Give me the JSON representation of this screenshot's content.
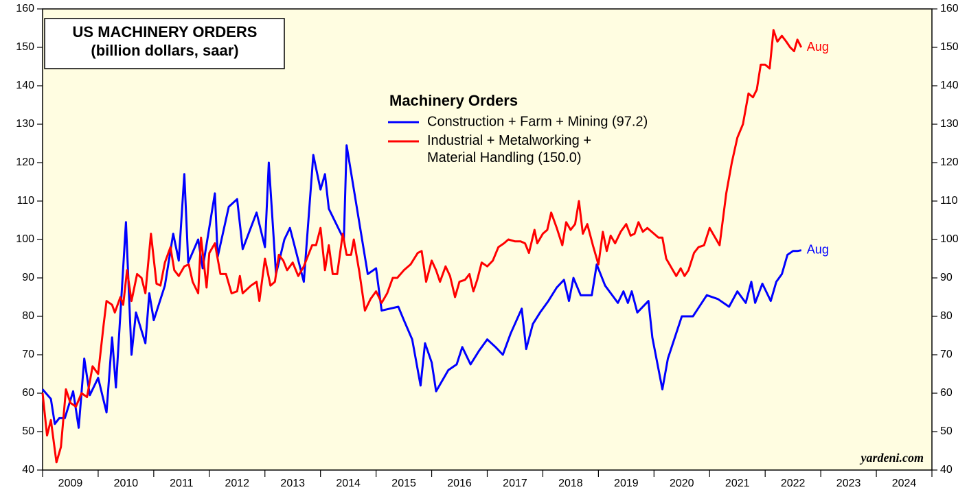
{
  "chart_data": {
    "type": "line",
    "title": "US MACHINERY ORDERS",
    "subtitle": "(billion dollars, saar)",
    "legend_title": "Machinery Orders",
    "source": "yardeni.com",
    "xlim": [
      2009,
      2025
    ],
    "xticks": [
      2009,
      2010,
      2011,
      2012,
      2013,
      2014,
      2015,
      2016,
      2017,
      2018,
      2019,
      2020,
      2021,
      2022,
      2023,
      2024,
      2025
    ],
    "x_labels": [
      "2009",
      "2010",
      "2011",
      "2012",
      "2013",
      "2014",
      "2015",
      "2016",
      "2017",
      "2018",
      "2019",
      "2020",
      "2021",
      "2022",
      "2023",
      "2024"
    ],
    "ylim": [
      40,
      160
    ],
    "yticks": [
      40,
      50,
      60,
      70,
      80,
      90,
      100,
      110,
      120,
      130,
      140,
      150,
      160
    ],
    "series": [
      {
        "name": "Construction + Farm + Mining (97.2)",
        "color": "#0000ff",
        "annotation": "Aug",
        "x": [
          2009.0,
          2009.15,
          2009.22,
          2009.3,
          2009.4,
          2009.55,
          2009.65,
          2009.75,
          2009.85,
          2010.0,
          2010.15,
          2010.25,
          2010.32,
          2010.5,
          2010.6,
          2010.68,
          2010.85,
          2010.92,
          2011.0,
          2011.2,
          2011.35,
          2011.45,
          2011.55,
          2011.62,
          2011.8,
          2011.88,
          2012.1,
          2012.15,
          2012.35,
          2012.5,
          2012.6,
          2012.85,
          2013.0,
          2013.07,
          2013.2,
          2013.35,
          2013.45,
          2013.7,
          2013.87,
          2014.0,
          2014.08,
          2014.15,
          2014.42,
          2014.47,
          2014.85,
          2015.0,
          2015.1,
          2015.4,
          2015.5,
          2015.65,
          2015.8,
          2015.88,
          2016.0,
          2016.08,
          2016.3,
          2016.45,
          2016.55,
          2016.7,
          2016.85,
          2017.0,
          2017.15,
          2017.28,
          2017.42,
          2017.62,
          2017.7,
          2017.82,
          2017.95,
          2018.1,
          2018.25,
          2018.38,
          2018.47,
          2018.55,
          2018.68,
          2018.88,
          2018.97,
          2019.12,
          2019.35,
          2019.45,
          2019.53,
          2019.6,
          2019.7,
          2019.9,
          2019.97,
          2020.15,
          2020.25,
          2020.5,
          2020.7,
          2020.95,
          2021.15,
          2021.35,
          2021.5,
          2021.65,
          2021.75,
          2021.82,
          2021.95,
          2022.1,
          2022.2,
          2022.3,
          2022.4,
          2022.5,
          2022.58,
          2022.65
        ],
        "values": [
          61,
          58.5,
          52,
          53.5,
          53.5,
          60.5,
          51,
          69,
          59.5,
          64,
          55,
          74.5,
          61.5,
          104.5,
          70,
          81,
          73,
          86,
          79,
          88,
          101.5,
          94.5,
          117,
          94,
          100,
          92.5,
          112,
          95.5,
          108.5,
          110.5,
          97.5,
          107,
          98,
          120,
          91,
          100,
          103,
          89,
          122,
          113,
          117,
          108,
          100,
          124.5,
          91,
          92.5,
          81.5,
          82.5,
          79,
          74,
          62,
          73,
          68,
          60.5,
          66,
          67.5,
          72,
          67.5,
          71,
          74,
          72,
          70,
          75.5,
          82,
          71.5,
          78,
          81,
          84,
          87.5,
          89.5,
          84,
          90,
          85.5,
          85.5,
          93.5,
          88,
          83.5,
          86.5,
          83.5,
          86.5,
          81,
          84,
          74.5,
          61,
          69,
          80,
          80,
          85.5,
          84.5,
          82.5,
          86.5,
          83.5,
          89,
          83.5,
          88.5,
          84,
          89,
          91,
          96,
          97,
          97,
          97.2
        ]
      },
      {
        "name": "Industrial + Metalworking +\nMaterial Handling (150.0)",
        "color": "#ff0000",
        "annotation": "Aug",
        "x": [
          2009.0,
          2009.08,
          2009.15,
          2009.25,
          2009.33,
          2009.42,
          2009.5,
          2009.6,
          2009.7,
          2009.8,
          2009.9,
          2010.0,
          2010.1,
          2010.15,
          2010.25,
          2010.3,
          2010.4,
          2010.45,
          2010.52,
          2010.6,
          2010.7,
          2010.78,
          2010.85,
          2010.95,
          2011.05,
          2011.12,
          2011.2,
          2011.3,
          2011.37,
          2011.45,
          2011.55,
          2011.63,
          2011.7,
          2011.8,
          2011.85,
          2011.95,
          2012.0,
          2012.1,
          2012.2,
          2012.3,
          2012.4,
          2012.5,
          2012.55,
          2012.6,
          2012.75,
          2012.85,
          2012.9,
          2013.0,
          2013.1,
          2013.18,
          2013.25,
          2013.33,
          2013.4,
          2013.5,
          2013.6,
          2013.7,
          2013.85,
          2013.92,
          2014.0,
          2014.08,
          2014.15,
          2014.22,
          2014.3,
          2014.4,
          2014.47,
          2014.55,
          2014.6,
          2014.7,
          2014.8,
          2014.9,
          2015.0,
          2015.1,
          2015.2,
          2015.3,
          2015.38,
          2015.5,
          2015.62,
          2015.75,
          2015.82,
          2015.9,
          2016.0,
          2016.08,
          2016.15,
          2016.25,
          2016.33,
          2016.42,
          2016.5,
          2016.6,
          2016.68,
          2016.75,
          2016.82,
          2016.9,
          2017.0,
          2017.1,
          2017.2,
          2017.3,
          2017.38,
          2017.5,
          2017.6,
          2017.68,
          2017.75,
          2017.85,
          2017.9,
          2018.0,
          2018.08,
          2018.15,
          2018.25,
          2018.35,
          2018.42,
          2018.5,
          2018.58,
          2018.65,
          2018.72,
          2018.8,
          2018.9,
          2019.0,
          2019.08,
          2019.15,
          2019.22,
          2019.3,
          2019.4,
          2019.5,
          2019.58,
          2019.65,
          2019.72,
          2019.8,
          2019.88,
          2020.0,
          2020.08,
          2020.15,
          2020.22,
          2020.3,
          2020.4,
          2020.48,
          2020.55,
          2020.62,
          2020.72,
          2020.8,
          2020.9,
          2021.0,
          2021.08,
          2021.18,
          2021.3,
          2021.4,
          2021.5,
          2021.6,
          2021.7,
          2021.78,
          2021.85,
          2021.92,
          2022.0,
          2022.08,
          2022.15,
          2022.22,
          2022.3,
          2022.38,
          2022.45,
          2022.52,
          2022.58,
          2022.65
        ],
        "values": [
          60,
          49,
          53,
          42,
          46,
          61,
          57.5,
          56.5,
          60,
          59,
          67,
          65,
          78,
          84,
          83,
          81,
          85,
          83,
          92,
          84,
          91,
          90,
          86,
          101.5,
          88.5,
          88,
          94,
          98,
          92,
          90.5,
          93,
          93.5,
          89,
          86,
          100.5,
          87.5,
          96.5,
          99,
          91,
          91,
          86,
          86.5,
          90.5,
          86,
          88,
          89,
          84,
          95,
          88,
          89,
          96,
          94.5,
          92,
          94,
          90.5,
          93,
          98.5,
          98.5,
          103,
          92,
          98.5,
          91,
          91,
          101.5,
          96,
          96,
          100,
          91.5,
          81.5,
          84.5,
          86.5,
          83.5,
          86,
          90,
          90,
          92,
          93.5,
          96.5,
          97,
          89,
          94.5,
          92,
          89,
          93,
          90.5,
          85,
          89,
          89.5,
          91,
          86.5,
          89.5,
          94,
          93,
          94.5,
          98,
          99,
          100,
          99.5,
          99.5,
          99,
          96.5,
          102.5,
          99,
          101.5,
          102.5,
          107,
          103,
          98.5,
          104.5,
          102.5,
          104,
          110,
          101.5,
          104,
          98.5,
          93.5,
          102,
          97,
          101,
          99,
          102,
          104,
          101,
          101.5,
          104.5,
          102,
          103,
          101.5,
          100.5,
          100.5,
          95,
          93,
          90.5,
          92.5,
          90.5,
          92,
          96.5,
          98,
          98.5,
          103,
          101,
          98.5,
          112,
          120,
          126.5,
          130,
          138,
          137,
          139,
          145.5,
          145.5,
          144.5,
          154.5,
          151.5,
          153,
          151.5,
          150,
          149,
          152,
          150
        ]
      }
    ]
  }
}
